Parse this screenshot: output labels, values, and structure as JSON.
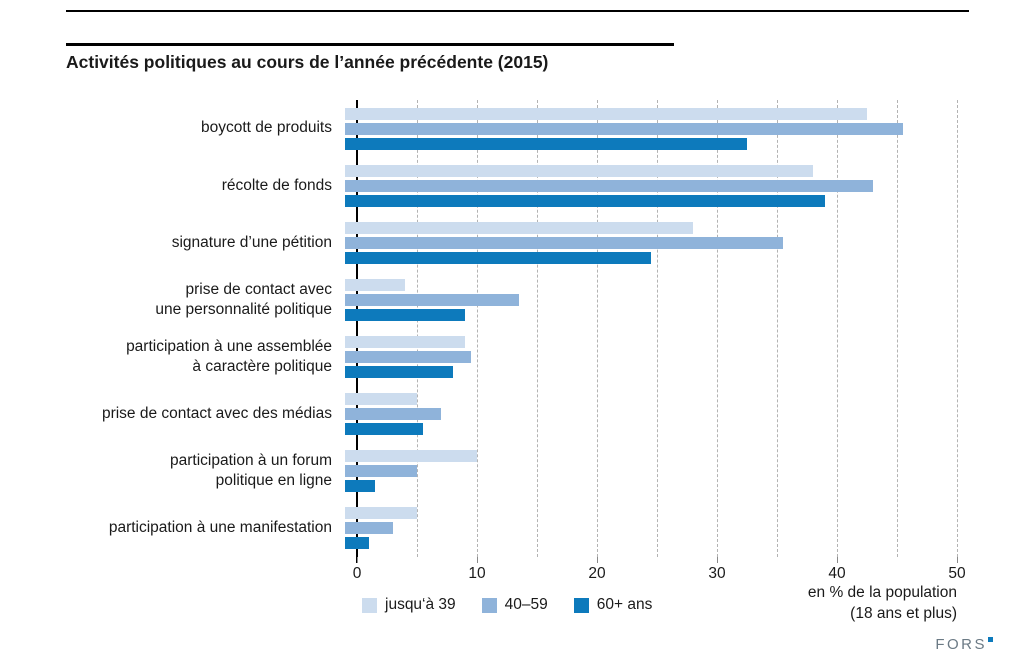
{
  "chart": {
    "title": "Activités politiques au cours de l’année précédente (2015)",
    "axis_note_line1": "en % de la population",
    "axis_note_line2": "(18 ans et plus)",
    "logo": "FORS"
  },
  "chart_data": {
    "type": "bar",
    "orientation": "horizontal",
    "title": "Activités politiques au cours de l’année précédente (2015)",
    "xlabel": "en % de la population (18 ans et plus)",
    "ylabel": "",
    "xlim": [
      0,
      50
    ],
    "xticks": [
      0,
      10,
      20,
      30,
      40,
      50
    ],
    "grid_step": 5,
    "grid": "dashed-vertical",
    "legend_position": "bottom",
    "categories": [
      "boycott de produits",
      "récolte de fonds",
      "signature d’une pétition",
      "prise de contact avec\nune personnalité politique",
      "participation à une assemblée\nà caractère politique",
      "prise de contact avec des médias",
      "participation à un forum\npolitique en ligne",
      "participation à une manifestation"
    ],
    "series": [
      {
        "name": "jusqu‘à 39",
        "color": "#ccdcee",
        "values": [
          43.5,
          39,
          29,
          5,
          10,
          6,
          11,
          6
        ]
      },
      {
        "name": "40–59",
        "color": "#8fb3da",
        "values": [
          46.5,
          44,
          36.5,
          14.5,
          10.5,
          8,
          6,
          4
        ]
      },
      {
        "name": "60+ ans",
        "color": "#0d7abc",
        "values": [
          33.5,
          40,
          25.5,
          10,
          9,
          6.5,
          2.5,
          2
        ]
      }
    ]
  }
}
